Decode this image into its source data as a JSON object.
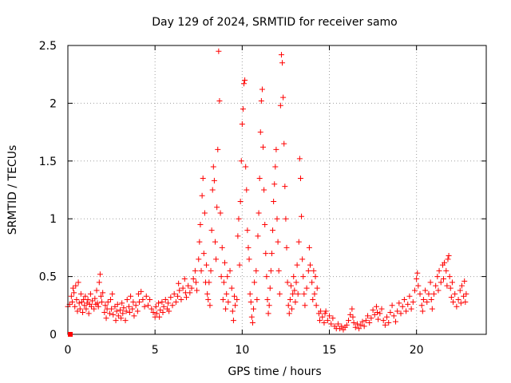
{
  "chart_data": {
    "type": "scatter",
    "title": "Day 129 of 2024, SRMTID for receiver samo",
    "xlabel": "GPS time / hours",
    "ylabel": "SRMTID / TECUs",
    "xlim": [
      0,
      24
    ],
    "ylim": [
      0,
      2.5
    ],
    "xticks": [
      "0",
      "5",
      "10",
      "15",
      "20"
    ],
    "yticks": [
      "0",
      "0.5",
      "1",
      "1.5",
      "2",
      "2.5"
    ],
    "grid": true,
    "marker": "+",
    "series_color": "#ff0000",
    "points": [
      [
        0.0,
        0.24
      ],
      [
        0.1,
        0.26
      ],
      [
        0.2,
        0.33
      ],
      [
        0.25,
        0.28
      ],
      [
        0.3,
        0.4
      ],
      [
        0.35,
        0.36
      ],
      [
        0.4,
        0.24
      ],
      [
        0.45,
        0.42
      ],
      [
        0.5,
        0.3
      ],
      [
        0.55,
        0.2
      ],
      [
        0.6,
        0.45
      ],
      [
        0.65,
        0.27
      ],
      [
        0.7,
        0.22
      ],
      [
        0.75,
        0.35
      ],
      [
        0.8,
        0.28
      ],
      [
        0.85,
        0.19
      ],
      [
        0.9,
        0.3
      ],
      [
        0.95,
        0.25
      ],
      [
        1.0,
        0.33
      ],
      [
        1.05,
        0.22
      ],
      [
        1.1,
        0.27
      ],
      [
        1.15,
        0.3
      ],
      [
        1.2,
        0.18
      ],
      [
        1.25,
        0.26
      ],
      [
        1.3,
        0.35
      ],
      [
        1.35,
        0.24
      ],
      [
        1.4,
        0.29
      ],
      [
        1.5,
        0.22
      ],
      [
        1.55,
        0.31
      ],
      [
        1.6,
        0.26
      ],
      [
        1.65,
        0.38
      ],
      [
        1.7,
        0.27
      ],
      [
        1.75,
        0.24
      ],
      [
        1.8,
        0.45
      ],
      [
        1.85,
        0.52
      ],
      [
        1.9,
        0.33
      ],
      [
        1.95,
        0.28
      ],
      [
        2.0,
        0.36
      ],
      [
        2.1,
        0.19
      ],
      [
        2.15,
        0.25
      ],
      [
        2.2,
        0.14
      ],
      [
        2.25,
        0.22
      ],
      [
        2.3,
        0.28
      ],
      [
        2.4,
        0.18
      ],
      [
        2.45,
        0.3
      ],
      [
        2.5,
        0.22
      ],
      [
        2.55,
        0.35
      ],
      [
        2.6,
        0.17
      ],
      [
        2.7,
        0.24
      ],
      [
        2.75,
        0.12
      ],
      [
        2.8,
        0.2
      ],
      [
        2.85,
        0.26
      ],
      [
        2.9,
        0.16
      ],
      [
        3.0,
        0.21
      ],
      [
        3.05,
        0.14
      ],
      [
        3.1,
        0.27
      ],
      [
        3.15,
        0.18
      ],
      [
        3.2,
        0.23
      ],
      [
        3.3,
        0.12
      ],
      [
        3.35,
        0.2
      ],
      [
        3.4,
        0.3
      ],
      [
        3.5,
        0.24
      ],
      [
        3.55,
        0.19
      ],
      [
        3.6,
        0.33
      ],
      [
        3.7,
        0.22
      ],
      [
        3.75,
        0.28
      ],
      [
        3.8,
        0.16
      ],
      [
        3.9,
        0.25
      ],
      [
        4.0,
        0.2
      ],
      [
        4.05,
        0.35
      ],
      [
        4.1,
        0.28
      ],
      [
        4.2,
        0.37
      ],
      [
        4.3,
        0.3
      ],
      [
        4.4,
        0.24
      ],
      [
        4.5,
        0.33
      ],
      [
        4.6,
        0.25
      ],
      [
        4.7,
        0.3
      ],
      [
        4.8,
        0.22
      ],
      [
        4.9,
        0.19
      ],
      [
        5.0,
        0.15
      ],
      [
        5.05,
        0.24
      ],
      [
        5.1,
        0.18
      ],
      [
        5.2,
        0.27
      ],
      [
        5.25,
        0.15
      ],
      [
        5.3,
        0.21
      ],
      [
        5.4,
        0.28
      ],
      [
        5.45,
        0.19
      ],
      [
        5.5,
        0.24
      ],
      [
        5.6,
        0.3
      ],
      [
        5.7,
        0.22
      ],
      [
        5.75,
        0.27
      ],
      [
        5.8,
        0.2
      ],
      [
        5.9,
        0.32
      ],
      [
        6.0,
        0.25
      ],
      [
        6.1,
        0.35
      ],
      [
        6.2,
        0.28
      ],
      [
        6.3,
        0.33
      ],
      [
        6.35,
        0.44
      ],
      [
        6.4,
        0.38
      ],
      [
        6.5,
        0.3
      ],
      [
        6.6,
        0.4
      ],
      [
        6.7,
        0.48
      ],
      [
        6.75,
        0.36
      ],
      [
        6.8,
        0.32
      ],
      [
        6.9,
        0.42
      ],
      [
        7.0,
        0.36
      ],
      [
        7.1,
        0.4
      ],
      [
        7.2,
        0.48
      ],
      [
        7.3,
        0.55
      ],
      [
        7.35,
        0.45
      ],
      [
        7.4,
        0.38
      ],
      [
        7.5,
        0.65
      ],
      [
        7.55,
        0.8
      ],
      [
        7.6,
        0.95
      ],
      [
        7.65,
        0.55
      ],
      [
        7.7,
        1.2
      ],
      [
        7.75,
        1.35
      ],
      [
        7.8,
        0.7
      ],
      [
        7.85,
        1.05
      ],
      [
        7.9,
        0.45
      ],
      [
        7.95,
        0.6
      ],
      [
        8.0,
        0.35
      ],
      [
        8.05,
        0.3
      ],
      [
        8.1,
        0.45
      ],
      [
        8.15,
        0.25
      ],
      [
        8.2,
        0.55
      ],
      [
        8.25,
        0.9
      ],
      [
        8.3,
        1.25
      ],
      [
        8.35,
        1.45
      ],
      [
        8.4,
        1.33
      ],
      [
        8.45,
        0.8
      ],
      [
        8.5,
        0.65
      ],
      [
        8.55,
        1.1
      ],
      [
        8.6,
        1.6
      ],
      [
        8.65,
        2.45
      ],
      [
        8.7,
        2.02
      ],
      [
        8.75,
        1.05
      ],
      [
        8.8,
        0.5
      ],
      [
        8.85,
        0.75
      ],
      [
        8.9,
        0.3
      ],
      [
        8.95,
        0.45
      ],
      [
        9.0,
        0.62
      ],
      [
        9.05,
        0.22
      ],
      [
        9.1,
        0.35
      ],
      [
        9.15,
        0.5
      ],
      [
        9.2,
        0.28
      ],
      [
        9.3,
        0.55
      ],
      [
        9.4,
        0.4
      ],
      [
        9.45,
        0.2
      ],
      [
        9.5,
        0.12
      ],
      [
        9.55,
        0.33
      ],
      [
        9.6,
        0.25
      ],
      [
        9.7,
        0.3
      ],
      [
        9.75,
        0.85
      ],
      [
        9.8,
        1.0
      ],
      [
        9.85,
        0.6
      ],
      [
        9.9,
        1.15
      ],
      [
        9.95,
        1.5
      ],
      [
        10.0,
        1.82
      ],
      [
        10.05,
        1.95
      ],
      [
        10.1,
        2.17
      ],
      [
        10.15,
        2.2
      ],
      [
        10.2,
        1.45
      ],
      [
        10.25,
        1.25
      ],
      [
        10.3,
        0.9
      ],
      [
        10.35,
        0.75
      ],
      [
        10.4,
        0.65
      ],
      [
        10.45,
        0.35
      ],
      [
        10.5,
        0.28
      ],
      [
        10.55,
        0.15
      ],
      [
        10.6,
        0.1
      ],
      [
        10.65,
        0.22
      ],
      [
        10.7,
        0.45
      ],
      [
        10.8,
        0.55
      ],
      [
        10.85,
        0.3
      ],
      [
        10.9,
        0.85
      ],
      [
        10.95,
        1.05
      ],
      [
        11.0,
        1.35
      ],
      [
        11.05,
        1.75
      ],
      [
        11.1,
        2.02
      ],
      [
        11.15,
        2.12
      ],
      [
        11.2,
        1.62
      ],
      [
        11.25,
        1.25
      ],
      [
        11.3,
        0.95
      ],
      [
        11.35,
        0.7
      ],
      [
        11.4,
        0.5
      ],
      [
        11.45,
        0.3
      ],
      [
        11.5,
        0.18
      ],
      [
        11.55,
        0.25
      ],
      [
        11.6,
        0.4
      ],
      [
        11.65,
        0.55
      ],
      [
        11.7,
        0.7
      ],
      [
        11.75,
        0.9
      ],
      [
        11.8,
        1.15
      ],
      [
        11.85,
        1.3
      ],
      [
        11.9,
        1.45
      ],
      [
        11.95,
        1.6
      ],
      [
        12.0,
        1.0
      ],
      [
        12.05,
        0.8
      ],
      [
        12.1,
        0.55
      ],
      [
        12.15,
        0.35
      ],
      [
        12.2,
        1.98
      ],
      [
        12.25,
        2.42
      ],
      [
        12.3,
        2.35
      ],
      [
        12.35,
        2.05
      ],
      [
        12.4,
        1.65
      ],
      [
        12.45,
        1.28
      ],
      [
        12.5,
        1.0
      ],
      [
        12.55,
        0.75
      ],
      [
        12.6,
        0.45
      ],
      [
        12.65,
        0.25
      ],
      [
        12.7,
        0.18
      ],
      [
        12.75,
        0.3
      ],
      [
        12.8,
        0.42
      ],
      [
        12.85,
        0.22
      ],
      [
        12.9,
        0.35
      ],
      [
        12.95,
        0.5
      ],
      [
        13.0,
        0.38
      ],
      [
        13.05,
        0.28
      ],
      [
        13.1,
        0.45
      ],
      [
        13.15,
        0.6
      ],
      [
        13.2,
        0.35
      ],
      [
        13.25,
        0.8
      ],
      [
        13.3,
        1.52
      ],
      [
        13.35,
        1.35
      ],
      [
        13.4,
        1.02
      ],
      [
        13.45,
        0.65
      ],
      [
        13.5,
        0.5
      ],
      [
        13.55,
        0.35
      ],
      [
        13.6,
        0.25
      ],
      [
        13.7,
        0.4
      ],
      [
        13.8,
        0.55
      ],
      [
        13.85,
        0.75
      ],
      [
        13.9,
        0.6
      ],
      [
        14.0,
        0.45
      ],
      [
        14.05,
        0.3
      ],
      [
        14.1,
        0.55
      ],
      [
        14.15,
        0.35
      ],
      [
        14.2,
        0.5
      ],
      [
        14.25,
        0.25
      ],
      [
        14.3,
        0.4
      ],
      [
        14.4,
        0.18
      ],
      [
        14.45,
        0.12
      ],
      [
        14.5,
        0.2
      ],
      [
        14.6,
        0.15
      ],
      [
        14.7,
        0.1
      ],
      [
        14.75,
        0.18
      ],
      [
        14.8,
        0.2
      ],
      [
        14.9,
        0.12
      ],
      [
        15.0,
        0.16
      ],
      [
        15.1,
        0.09
      ],
      [
        15.2,
        0.14
      ],
      [
        15.3,
        0.07
      ],
      [
        15.4,
        0.05
      ],
      [
        15.5,
        0.09
      ],
      [
        15.6,
        0.05
      ],
      [
        15.7,
        0.07
      ],
      [
        15.8,
        0.04
      ],
      [
        15.9,
        0.06
      ],
      [
        16.0,
        0.08
      ],
      [
        16.1,
        0.12
      ],
      [
        16.2,
        0.17
      ],
      [
        16.3,
        0.22
      ],
      [
        16.35,
        0.15
      ],
      [
        16.4,
        0.1
      ],
      [
        16.5,
        0.06
      ],
      [
        16.6,
        0.09
      ],
      [
        16.7,
        0.05
      ],
      [
        16.8,
        0.08
      ],
      [
        16.9,
        0.11
      ],
      [
        17.0,
        0.07
      ],
      [
        17.1,
        0.12
      ],
      [
        17.2,
        0.16
      ],
      [
        17.3,
        0.1
      ],
      [
        17.4,
        0.14
      ],
      [
        17.5,
        0.21
      ],
      [
        17.6,
        0.17
      ],
      [
        17.7,
        0.24
      ],
      [
        17.75,
        0.19
      ],
      [
        17.8,
        0.13
      ],
      [
        17.9,
        0.18
      ],
      [
        18.0,
        0.22
      ],
      [
        18.1,
        0.12
      ],
      [
        18.2,
        0.08
      ],
      [
        18.3,
        0.15
      ],
      [
        18.4,
        0.1
      ],
      [
        18.5,
        0.19
      ],
      [
        18.6,
        0.25
      ],
      [
        18.7,
        0.16
      ],
      [
        18.8,
        0.11
      ],
      [
        18.9,
        0.2
      ],
      [
        19.0,
        0.27
      ],
      [
        19.1,
        0.18
      ],
      [
        19.2,
        0.24
      ],
      [
        19.3,
        0.3
      ],
      [
        19.4,
        0.2
      ],
      [
        19.5,
        0.26
      ],
      [
        19.6,
        0.33
      ],
      [
        19.7,
        0.22
      ],
      [
        19.8,
        0.28
      ],
      [
        19.9,
        0.38
      ],
      [
        20.0,
        0.48
      ],
      [
        20.05,
        0.53
      ],
      [
        20.1,
        0.42
      ],
      [
        20.2,
        0.35
      ],
      [
        20.3,
        0.25
      ],
      [
        20.35,
        0.2
      ],
      [
        20.4,
        0.3
      ],
      [
        20.5,
        0.38
      ],
      [
        20.6,
        0.28
      ],
      [
        20.7,
        0.35
      ],
      [
        20.8,
        0.45
      ],
      [
        20.85,
        0.3
      ],
      [
        20.9,
        0.22
      ],
      [
        21.0,
        0.35
      ],
      [
        21.1,
        0.42
      ],
      [
        21.2,
        0.5
      ],
      [
        21.25,
        0.38
      ],
      [
        21.3,
        0.55
      ],
      [
        21.4,
        0.45
      ],
      [
        21.5,
        0.6
      ],
      [
        21.55,
        0.48
      ],
      [
        21.6,
        0.62
      ],
      [
        21.7,
        0.55
      ],
      [
        21.75,
        0.42
      ],
      [
        21.8,
        0.65
      ],
      [
        21.85,
        0.68
      ],
      [
        21.9,
        0.5
      ],
      [
        21.95,
        0.4
      ],
      [
        22.0,
        0.32
      ],
      [
        22.05,
        0.45
      ],
      [
        22.1,
        0.28
      ],
      [
        22.2,
        0.35
      ],
      [
        22.3,
        0.24
      ],
      [
        22.4,
        0.3
      ],
      [
        22.5,
        0.38
      ],
      [
        22.55,
        0.27
      ],
      [
        22.6,
        0.42
      ],
      [
        22.7,
        0.33
      ],
      [
        22.75,
        0.46
      ],
      [
        22.8,
        0.28
      ],
      [
        22.85,
        0.35
      ]
    ]
  }
}
